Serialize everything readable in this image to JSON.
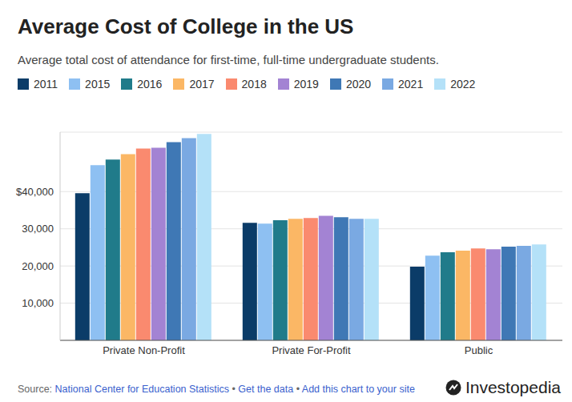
{
  "chart_data": {
    "type": "bar",
    "title": "Average Cost of College in the US",
    "subtitle": "Average total cost of attendance for first-time, full-time undergraduate students.",
    "categories": [
      "Private Non-Profit",
      "Private For-Profit",
      "Public"
    ],
    "series": [
      {
        "name": "2011",
        "color": "#0b3c68",
        "values": [
          39600,
          31600,
          19800
        ]
      },
      {
        "name": "2015",
        "color": "#8ec0f2",
        "values": [
          47100,
          31400,
          22800
        ]
      },
      {
        "name": "2016",
        "color": "#207b8a",
        "values": [
          48600,
          32300,
          23700
        ]
      },
      {
        "name": "2017",
        "color": "#fbb765",
        "values": [
          50100,
          32700,
          24100
        ]
      },
      {
        "name": "2018",
        "color": "#fa8a6f",
        "values": [
          51600,
          32900,
          24700
        ]
      },
      {
        "name": "2019",
        "color": "#a383d3",
        "values": [
          51800,
          33500,
          24500
        ]
      },
      {
        "name": "2020",
        "color": "#3f78b5",
        "values": [
          53300,
          33100,
          25200
        ]
      },
      {
        "name": "2021",
        "color": "#7aa9e2",
        "values": [
          54400,
          32700,
          25400
        ]
      },
      {
        "name": "2022",
        "color": "#b4e1f8",
        "values": [
          55500,
          32700,
          25800
        ]
      }
    ],
    "ylim": [
      0,
      56000
    ],
    "yticks": [
      {
        "value": 10000,
        "label": "10,000"
      },
      {
        "value": 20000,
        "label": "20,000"
      },
      {
        "value": 30000,
        "label": "30,000"
      },
      {
        "value": 40000,
        "label": "$40,000"
      }
    ],
    "grid": true,
    "footer": {
      "label": "Source:",
      "source": "National Center for Education Statistics",
      "links": [
        "Get the data",
        "Add this chart to your site"
      ],
      "separator": "•",
      "brand": "Investopedia"
    }
  }
}
